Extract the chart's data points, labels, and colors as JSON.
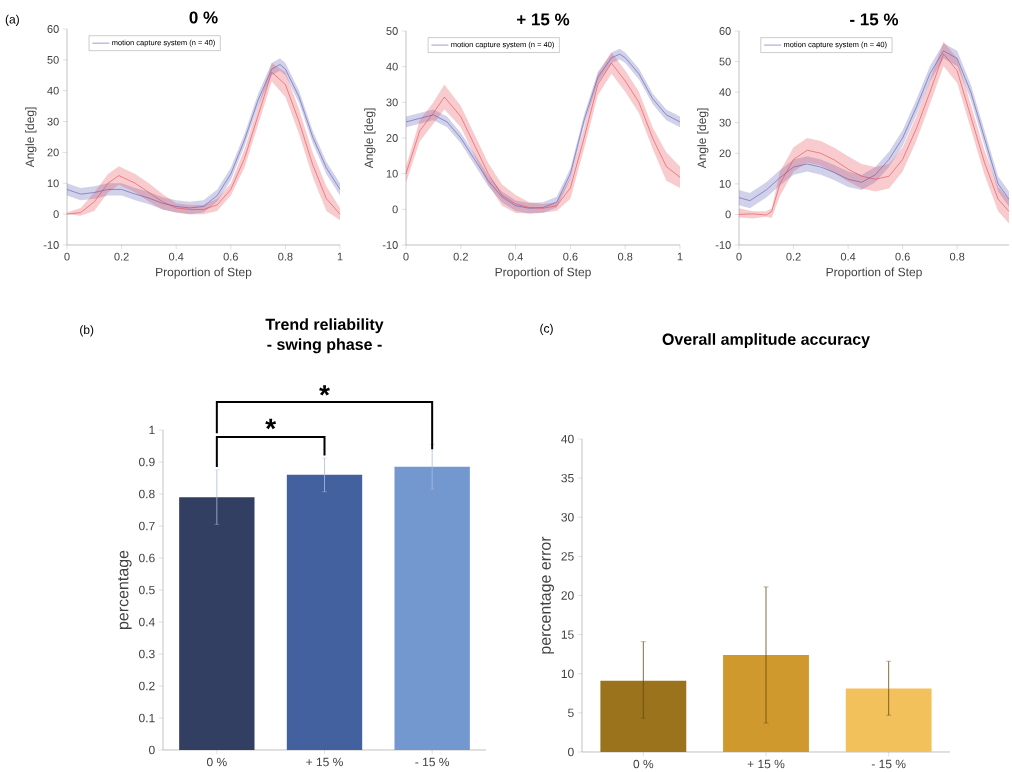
{
  "chart_data": [
    {
      "type": "line",
      "title": "0 %",
      "xlabel": "Proportion of Step",
      "ylabel": "Angle [deg]",
      "annotations": [
        "(a)"
      ],
      "legend": "top left",
      "xlim": [
        0,
        1
      ],
      "ylim": [
        -10,
        60
      ],
      "xticks": [
        0,
        0.2,
        0.4,
        0.6,
        0.8,
        1
      ],
      "yticks": [
        -10,
        0,
        10,
        20,
        30,
        40,
        50,
        60
      ],
      "series": [
        {
          "name": "motion capture system (n = 40)",
          "color": "#5b5bb5",
          "x": [
            0,
            0.05,
            0.1,
            0.15,
            0.2,
            0.25,
            0.3,
            0.35,
            0.4,
            0.45,
            0.5,
            0.55,
            0.6,
            0.65,
            0.7,
            0.75,
            0.78,
            0.8,
            0.85,
            0.9,
            0.95,
            1
          ],
          "values": [
            8,
            6.5,
            7,
            8,
            8,
            6.5,
            5.2,
            3.5,
            2.5,
            2,
            2.5,
            6,
            13,
            24,
            37,
            47,
            48.5,
            47,
            38,
            25,
            15,
            8
          ],
          "lower": [
            6,
            4.5,
            5,
            6,
            6,
            4.5,
            3.2,
            1.5,
            0.5,
            0,
            0.5,
            4,
            11,
            22,
            35,
            45,
            46.5,
            45,
            36,
            23,
            13,
            6
          ],
          "upper": [
            10,
            8.5,
            9,
            10,
            10,
            8.5,
            7.2,
            5.5,
            4.5,
            4,
            4.5,
            8,
            15,
            26,
            39,
            49,
            50.5,
            49,
            40,
            27,
            17,
            10
          ]
        },
        {
          "color": "#e5474f",
          "x": [
            0,
            0.05,
            0.1,
            0.15,
            0.19,
            0.25,
            0.3,
            0.35,
            0.4,
            0.45,
            0.5,
            0.55,
            0.6,
            0.65,
            0.7,
            0.75,
            0.8,
            0.85,
            0.9,
            0.95,
            1
          ],
          "values": [
            0,
            0.5,
            4,
            10,
            12.5,
            10,
            7,
            4,
            2,
            1.5,
            1.5,
            3,
            8,
            18,
            32,
            46,
            42,
            30,
            16,
            5,
            0
          ],
          "lower": [
            0,
            -0.5,
            1,
            7,
            9.5,
            7,
            4,
            1.5,
            0.5,
            0,
            0,
            1,
            6,
            15,
            29,
            43,
            38,
            26,
            12,
            1,
            -2
          ],
          "upper": [
            0.5,
            2,
            7,
            13,
            15.5,
            13,
            10,
            6.5,
            3.5,
            3,
            3,
            5,
            10,
            21,
            35,
            49,
            46,
            34,
            20,
            9,
            2
          ]
        }
      ]
    },
    {
      "type": "line",
      "title": "+ 15 %",
      "xlabel": "Proportion of Step",
      "ylabel": "Angle [deg]",
      "legend": "top left",
      "xlim": [
        0,
        1
      ],
      "ylim": [
        -10,
        50
      ],
      "xticks": [
        0,
        0.2,
        0.4,
        0.6,
        0.8,
        1
      ],
      "yticks": [
        -10,
        0,
        10,
        20,
        30,
        40,
        50
      ],
      "series": [
        {
          "name": "motion capture system (n = 40)",
          "color": "#5b5bb5",
          "x": [
            0,
            0.05,
            0.1,
            0.15,
            0.2,
            0.25,
            0.3,
            0.35,
            0.4,
            0.45,
            0.5,
            0.55,
            0.6,
            0.65,
            0.7,
            0.75,
            0.78,
            0.8,
            0.85,
            0.9,
            0.95,
            1
          ],
          "values": [
            24.5,
            25.5,
            26.5,
            24.5,
            20,
            14,
            8,
            3.5,
            1,
            0.3,
            0.5,
            2,
            10,
            25,
            37,
            42.5,
            43.5,
            42.5,
            38,
            31,
            26.5,
            24.5
          ],
          "lower": [
            23,
            24,
            25,
            23,
            18.5,
            12.5,
            6.5,
            2,
            -0.5,
            -1.2,
            -1,
            0.5,
            8.5,
            23.5,
            35.5,
            41,
            42,
            41,
            36.5,
            29.5,
            25,
            23
          ],
          "upper": [
            26,
            27,
            28,
            26,
            21.5,
            15.5,
            9.5,
            5,
            2.5,
            1.8,
            2,
            3.5,
            11.5,
            26.5,
            38.5,
            44,
            45,
            44,
            39.5,
            32.5,
            28,
            26
          ]
        },
        {
          "color": "#e5474f",
          "x": [
            0,
            0.05,
            0.1,
            0.14,
            0.2,
            0.25,
            0.3,
            0.35,
            0.4,
            0.45,
            0.5,
            0.55,
            0.6,
            0.65,
            0.7,
            0.75,
            0.8,
            0.85,
            0.9,
            0.95,
            1
          ],
          "values": [
            10,
            22,
            27,
            31.5,
            26,
            18,
            10,
            4,
            1.5,
            0.5,
            0.3,
            1,
            6,
            20,
            35,
            41,
            36,
            30,
            20,
            12,
            9
          ],
          "lower": [
            7.5,
            19,
            24,
            28,
            23,
            15,
            7,
            1,
            -1,
            -1.2,
            -0.9,
            -0.5,
            3,
            17,
            32,
            38,
            33,
            27,
            17,
            8,
            6
          ],
          "upper": [
            12,
            25,
            30,
            35,
            29,
            21,
            13,
            7,
            4,
            2,
            1.5,
            2,
            9,
            23,
            38,
            44,
            39,
            33,
            23,
            16,
            12
          ]
        }
      ]
    },
    {
      "type": "line",
      "title": "- 15 %",
      "xlabel": "Proportion of Step",
      "ylabel": "Angle [deg]",
      "legend": "top left",
      "xlim": [
        0,
        0.99
      ],
      "ylim": [
        -10,
        60
      ],
      "xticks": [
        0,
        0.2,
        0.4,
        0.6,
        0.8
      ],
      "yticks": [
        -10,
        0,
        10,
        20,
        30,
        40,
        50,
        60
      ],
      "series": [
        {
          "name": "motion capture system (n = 40)",
          "color": "#5b5bb5",
          "x": [
            0,
            0.04,
            0.1,
            0.15,
            0.2,
            0.25,
            0.3,
            0.35,
            0.4,
            0.45,
            0.5,
            0.55,
            0.6,
            0.65,
            0.7,
            0.75,
            0.8,
            0.85,
            0.9,
            0.95,
            0.99
          ],
          "values": [
            5.5,
            4.5,
            8,
            12,
            15.5,
            16.5,
            15.5,
            13.7,
            11.5,
            10.5,
            13,
            18,
            25,
            35,
            46,
            53.5,
            51,
            40,
            25,
            10,
            5
          ],
          "lower": [
            3,
            2,
            5.5,
            9.5,
            13,
            14,
            13,
            11.2,
            9,
            8,
            10.5,
            15.5,
            22.5,
            32.5,
            43.5,
            51,
            48.5,
            37.5,
            22.5,
            7.5,
            2.5
          ],
          "upper": [
            8,
            7,
            10.5,
            14.5,
            18,
            19,
            18,
            16.2,
            14,
            13,
            15.5,
            20.5,
            27.5,
            37.5,
            48.5,
            56,
            53.5,
            42.5,
            27.5,
            12.5,
            7.5
          ]
        },
        {
          "color": "#e5474f",
          "x": [
            0,
            0.05,
            0.1,
            0.12,
            0.15,
            0.2,
            0.25,
            0.3,
            0.35,
            0.4,
            0.45,
            0.5,
            0.55,
            0.6,
            0.65,
            0.7,
            0.75,
            0.8,
            0.85,
            0.9,
            0.95,
            0.99
          ],
          "values": [
            0,
            0.2,
            -0.2,
            1,
            10,
            18,
            21,
            20,
            17.8,
            14.8,
            12.5,
            11.5,
            12.5,
            18,
            28,
            40,
            52.5,
            47,
            32,
            17,
            5,
            1
          ],
          "lower": [
            -1,
            -1.3,
            -0.8,
            -1.2,
            6,
            14,
            17,
            16,
            13.5,
            10.8,
            8.5,
            7.5,
            8.5,
            14,
            24,
            36,
            48.5,
            43,
            28,
            13,
            1,
            -3
          ],
          "upper": [
            2,
            1,
            1,
            2,
            14,
            22,
            25,
            24,
            21.8,
            19,
            16.5,
            15.5,
            16.5,
            22,
            32,
            44,
            56.5,
            51,
            36,
            21,
            9,
            5
          ]
        }
      ]
    },
    {
      "type": "bar",
      "title": "Trend reliability",
      "subtitle": "- swing phase -",
      "ylabel": "percentage",
      "annotations": [
        "(b)",
        "*",
        "*"
      ],
      "categories": [
        "0 %",
        "+ 15 %",
        "- 15 %"
      ],
      "values": [
        0.79,
        0.86,
        0.885
      ],
      "colors": [
        "#323f62",
        "#44619f",
        "#7397cf"
      ],
      "errors": [
        [
          0.705,
          0.875
        ],
        [
          0.807,
          0.912
        ],
        [
          0.815,
          0.955
        ]
      ],
      "ylim": [
        0,
        1
      ],
      "yticks": [
        0,
        0.1,
        0.2,
        0.3,
        0.4,
        0.5,
        0.6,
        0.7,
        0.8,
        0.9,
        1
      ]
    },
    {
      "type": "bar",
      "title": "Overall amplitude accuracy",
      "ylabel": "percentage error",
      "annotations": [
        "(c)"
      ],
      "categories": [
        "0 %",
        "+ 15 %",
        "- 15 %"
      ],
      "values": [
        9.1,
        12.4,
        8.1
      ],
      "colors": [
        "#9a731c",
        "#cf992e",
        "#f2c15b"
      ],
      "errors": [
        [
          4.3,
          14.1
        ],
        [
          3.7,
          21.1
        ],
        [
          4.7,
          11.6
        ]
      ],
      "ylim": [
        0,
        40
      ],
      "yticks": [
        0,
        5,
        10,
        15,
        20,
        25,
        30,
        35,
        40
      ]
    }
  ]
}
